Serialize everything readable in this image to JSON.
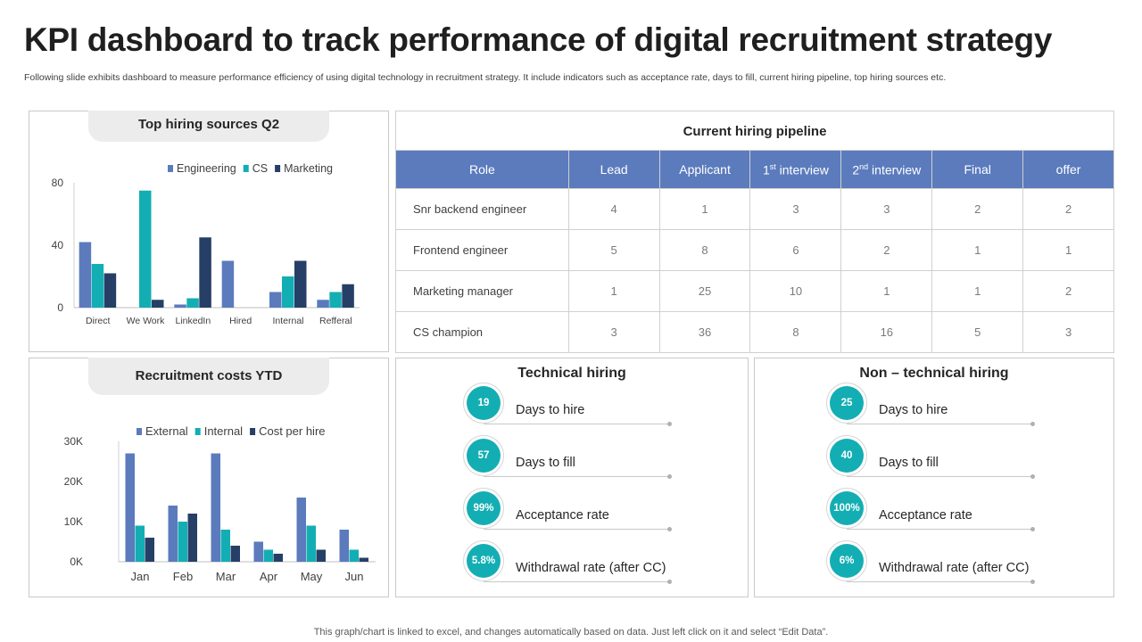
{
  "header": {
    "title": "KPI dashboard to track performance of digital recruitment strategy",
    "subtitle": "Following slide exhibits dashboard to measure performance efficiency of using digital technology in recruitment strategy. It include indicators such as acceptance rate, days to fill, current hiring pipeline, top hiring sources etc."
  },
  "colors": {
    "engineering": "#5b7bbd",
    "cs": "#13aeb3",
    "marketing": "#263f66",
    "header_blue": "#5b7bbd",
    "teal": "#13aeb3"
  },
  "chart_data": [
    {
      "type": "bar",
      "title": "Top hiring sources  Q2",
      "categories": [
        "Direct",
        "We Work",
        "LinkedIn",
        "Hired",
        "Internal",
        "Refferal"
      ],
      "series": [
        {
          "name": "Engineering",
          "values": [
            42,
            0,
            2,
            30,
            10,
            5
          ]
        },
        {
          "name": "CS",
          "values": [
            28,
            75,
            6,
            0,
            20,
            10
          ]
        },
        {
          "name": "Marketing",
          "values": [
            22,
            5,
            45,
            0,
            30,
            15
          ]
        }
      ],
      "yticks": [
        "0",
        "40",
        "80"
      ],
      "ylim": [
        0,
        80
      ],
      "legend": "top"
    },
    {
      "type": "bar",
      "title": "Recruitment costs  YTD",
      "categories": [
        "Jan",
        "Feb",
        "Mar",
        "Apr",
        "May",
        "Jun"
      ],
      "series": [
        {
          "name": "External",
          "values": [
            27000,
            14000,
            27000,
            5000,
            16000,
            8000
          ]
        },
        {
          "name": "Internal",
          "values": [
            9000,
            10000,
            8000,
            3000,
            9000,
            3000
          ]
        },
        {
          "name": "Cost per hire",
          "values": [
            6000,
            12000,
            4000,
            2000,
            3000,
            1000
          ]
        }
      ],
      "yticks": [
        "0K",
        "10K",
        "20K",
        "30K"
      ],
      "ylim": [
        0,
        30000
      ],
      "legend": "top"
    }
  ],
  "pipeline": {
    "title": "Current hiring pipeline",
    "headers": {
      "role": "Role",
      "lead": "Lead",
      "applicant": "Applicant",
      "interview1_num": "1",
      "interview1_sup": "st",
      "interview1_rest": " interview",
      "interview2_num": "2",
      "interview2_sup": "nd",
      "interview2_rest": " interview",
      "final": "Final",
      "offer": "offer"
    },
    "rows": [
      {
        "role": "Snr backend engineer",
        "lead": "4",
        "applicant": "1",
        "i1": "3",
        "i2": "3",
        "final": "2",
        "offer": "2"
      },
      {
        "role": "Frontend engineer",
        "lead": "5",
        "applicant": "8",
        "i1": "6",
        "i2": "2",
        "final": "1",
        "offer": "1"
      },
      {
        "role": "Marketing manager",
        "lead": "1",
        "applicant": "25",
        "i1": "10",
        "i2": "1",
        "final": "1",
        "offer": "2"
      },
      {
        "role": "CS champion",
        "lead": "3",
        "applicant": "36",
        "i1": "8",
        "i2": "16",
        "final": "5",
        "offer": "3"
      }
    ]
  },
  "technical": {
    "title": "Technical hiring",
    "kpis": [
      {
        "value": "19",
        "label": "Days to hire"
      },
      {
        "value": "57",
        "label": "Days to fill"
      },
      {
        "value": "99%",
        "label": "Acceptance rate"
      },
      {
        "value": "5.8%",
        "label": "Withdrawal rate (after CC)"
      }
    ]
  },
  "nontechnical": {
    "title": "Non – technical hiring",
    "kpis": [
      {
        "value": "25",
        "label": "Days to hire"
      },
      {
        "value": "40",
        "label": "Days to fill"
      },
      {
        "value": "100%",
        "label": "Acceptance rate"
      },
      {
        "value": "6%",
        "label": "Withdrawal rate (after CC)"
      }
    ]
  },
  "footer": "This graph/chart is linked to excel,  and changes automatically based on data. Just left click on it and select “Edit Data”."
}
